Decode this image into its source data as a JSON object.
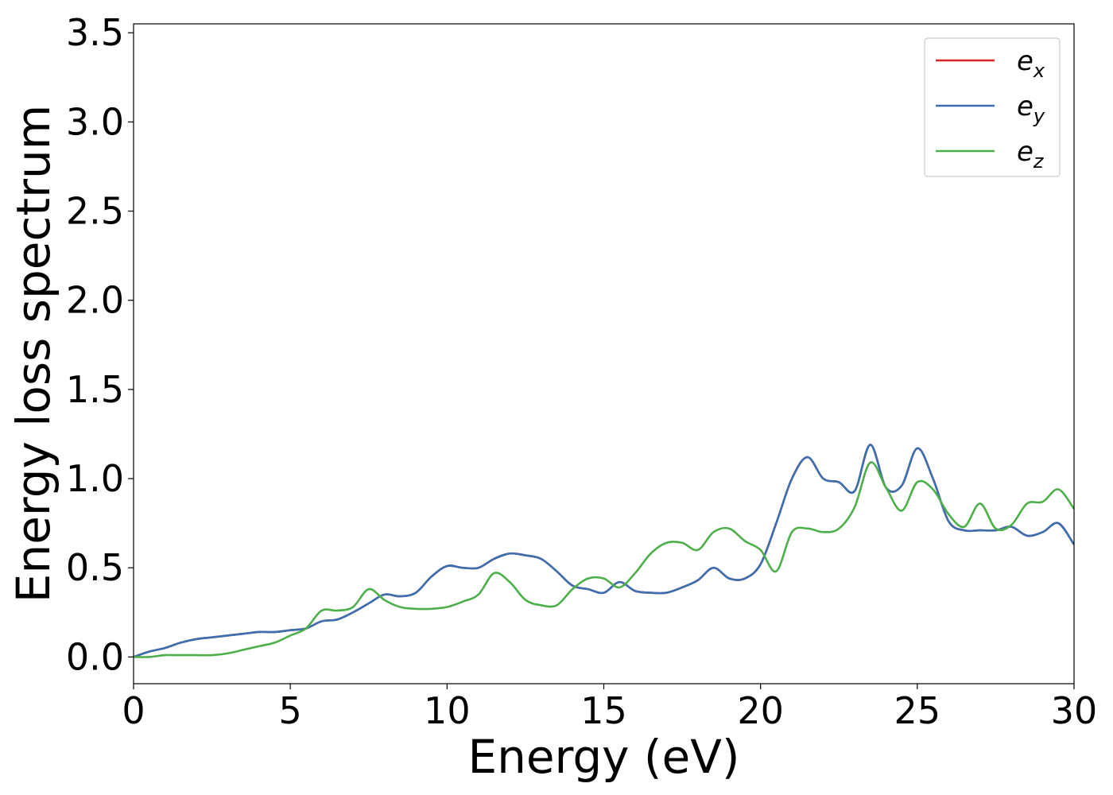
{
  "chart_data": {
    "type": "line",
    "xlabel": "Energy (eV)",
    "ylabel": "Energy loss spectrum",
    "xlim": [
      0,
      30
    ],
    "ylim": [
      -0.15,
      3.55
    ],
    "xticks": [
      0,
      5,
      10,
      15,
      20,
      25,
      30
    ],
    "xtick_labels": [
      "0",
      "5",
      "10",
      "15",
      "20",
      "25",
      "30"
    ],
    "yticks": [
      0.0,
      0.5,
      1.0,
      1.5,
      2.0,
      2.5,
      3.0,
      3.5
    ],
    "ytick_labels": [
      "0.0",
      "0.5",
      "1.0",
      "1.5",
      "2.0",
      "2.5",
      "3.0",
      "3.5"
    ],
    "grid": false,
    "legend_position": "top-right",
    "series": [
      {
        "name": "e_x",
        "legend_base": "e",
        "legend_sub": "x",
        "color": "#d62728",
        "x": [
          0,
          0.5,
          1,
          1.5,
          2,
          2.5,
          3,
          3.5,
          4,
          4.5,
          5,
          5.5,
          6,
          6.5,
          7,
          7.5,
          8,
          8.5,
          9,
          9.5,
          10,
          10.5,
          11,
          11.5,
          12,
          12.5,
          13,
          13.5,
          14,
          14.5,
          15,
          15.5,
          16,
          16.5,
          17,
          17.5,
          18,
          18.5,
          19,
          19.5,
          20,
          20.5,
          21,
          21.5,
          22,
          22.5,
          23,
          23.5,
          24,
          24.5,
          25,
          25.5,
          26,
          26.5,
          27,
          27.5,
          28,
          28.5,
          29,
          29.5,
          30
        ],
        "y": [
          0.0,
          0.03,
          0.05,
          0.08,
          0.1,
          0.11,
          0.12,
          0.13,
          0.14,
          0.14,
          0.15,
          0.16,
          0.2,
          0.21,
          0.25,
          0.3,
          0.35,
          0.34,
          0.36,
          0.45,
          0.51,
          0.5,
          0.5,
          0.55,
          0.58,
          0.57,
          0.55,
          0.48,
          0.4,
          0.38,
          0.36,
          0.42,
          0.37,
          0.36,
          0.36,
          0.39,
          0.43,
          0.5,
          0.44,
          0.44,
          0.52,
          0.75,
          1.0,
          1.12,
          1.0,
          0.98,
          0.93,
          1.19,
          0.95,
          0.96,
          1.17,
          1.0,
          0.76,
          0.71,
          0.71,
          0.71,
          0.73,
          0.68,
          0.7,
          0.75,
          0.63
        ]
      },
      {
        "name": "e_y",
        "legend_base": "e",
        "legend_sub": "y",
        "color": "#3a6fb0",
        "x": [
          0,
          0.5,
          1,
          1.5,
          2,
          2.5,
          3,
          3.5,
          4,
          4.5,
          5,
          5.5,
          6,
          6.5,
          7,
          7.5,
          8,
          8.5,
          9,
          9.5,
          10,
          10.5,
          11,
          11.5,
          12,
          12.5,
          13,
          13.5,
          14,
          14.5,
          15,
          15.5,
          16,
          16.5,
          17,
          17.5,
          18,
          18.5,
          19,
          19.5,
          20,
          20.5,
          21,
          21.5,
          22,
          22.5,
          23,
          23.5,
          24,
          24.5,
          25,
          25.5,
          26,
          26.5,
          27,
          27.5,
          28,
          28.5,
          29,
          29.5,
          30
        ],
        "y": [
          0.0,
          0.03,
          0.05,
          0.08,
          0.1,
          0.11,
          0.12,
          0.13,
          0.14,
          0.14,
          0.15,
          0.16,
          0.2,
          0.21,
          0.25,
          0.3,
          0.35,
          0.34,
          0.36,
          0.45,
          0.51,
          0.5,
          0.5,
          0.55,
          0.58,
          0.57,
          0.55,
          0.48,
          0.4,
          0.38,
          0.36,
          0.42,
          0.37,
          0.36,
          0.36,
          0.39,
          0.43,
          0.5,
          0.44,
          0.44,
          0.52,
          0.75,
          1.0,
          1.12,
          1.0,
          0.98,
          0.93,
          1.19,
          0.95,
          0.96,
          1.17,
          1.0,
          0.76,
          0.71,
          0.71,
          0.71,
          0.73,
          0.68,
          0.7,
          0.75,
          0.63
        ]
      },
      {
        "name": "e_z",
        "legend_base": "e",
        "legend_sub": "z",
        "color": "#4daf4a",
        "x": [
          0,
          0.5,
          1,
          1.5,
          2,
          2.5,
          3,
          3.5,
          4,
          4.5,
          5,
          5.5,
          6,
          6.5,
          7,
          7.5,
          8,
          8.5,
          9,
          9.5,
          10,
          10.5,
          11,
          11.5,
          12,
          12.5,
          13,
          13.5,
          14,
          14.5,
          15,
          15.5,
          16,
          16.5,
          17,
          17.5,
          18,
          18.5,
          19,
          19.5,
          20,
          20.5,
          21,
          21.5,
          22,
          22.5,
          23,
          23.5,
          24,
          24.5,
          25,
          25.5,
          26,
          26.5,
          27,
          27.5,
          28,
          28.5,
          29,
          29.5,
          30
        ],
        "y": [
          0.0,
          0.0,
          0.01,
          0.01,
          0.01,
          0.01,
          0.02,
          0.04,
          0.06,
          0.08,
          0.12,
          0.16,
          0.26,
          0.26,
          0.28,
          0.38,
          0.32,
          0.28,
          0.27,
          0.27,
          0.28,
          0.31,
          0.35,
          0.47,
          0.42,
          0.32,
          0.29,
          0.29,
          0.38,
          0.44,
          0.44,
          0.39,
          0.47,
          0.58,
          0.64,
          0.64,
          0.6,
          0.7,
          0.72,
          0.65,
          0.6,
          0.48,
          0.7,
          0.72,
          0.7,
          0.72,
          0.84,
          1.09,
          0.95,
          0.82,
          0.98,
          0.94,
          0.8,
          0.73,
          0.86,
          0.72,
          0.74,
          0.86,
          0.87,
          0.94,
          0.83
        ]
      }
    ]
  }
}
